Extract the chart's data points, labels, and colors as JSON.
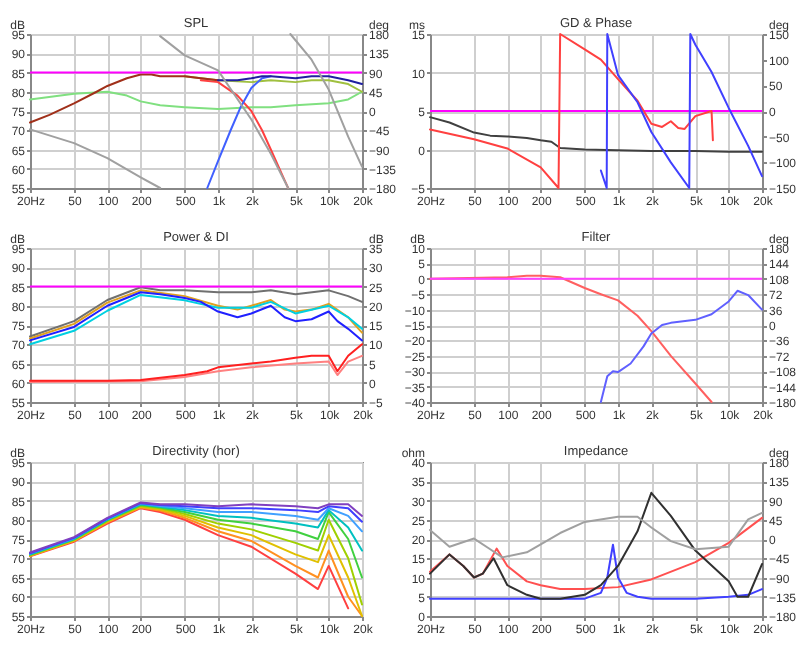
{
  "chart_data": [
    {
      "type": "line",
      "title": "SPL",
      "ylabel": "dB",
      "y2label": "deg",
      "log": "x",
      "grid": true,
      "xlim": [
        20,
        20000
      ],
      "xticks": [
        {
          "value": 20,
          "label": "20Hz"
        },
        50,
        100,
        200,
        500,
        {
          "value": 1000,
          "label": "1k"
        },
        {
          "value": 2000,
          "label": "2k"
        },
        {
          "value": 5000,
          "label": "5k"
        },
        {
          "value": 10000,
          "label": "10k"
        },
        {
          "value": 20000,
          "label": "20k"
        }
      ],
      "ylim": [
        55,
        95
      ],
      "yticks": [
        55,
        60,
        65,
        70,
        75,
        80,
        85,
        90,
        95
      ],
      "y2lim": [
        -180,
        180
      ],
      "y2ticks": [
        -180,
        -135,
        -90,
        -45,
        0,
        45,
        90,
        135,
        180
      ],
      "ref_lines": [
        {
          "axis": "y",
          "value": 85,
          "color": "#ff00ff"
        }
      ],
      "series": [
        {
          "color": "#80e080",
          "x": [
            20,
            50,
            100,
            150,
            200,
            300,
            500,
            1000,
            2000,
            3000,
            5000,
            10000,
            15000,
            20000
          ],
          "values": [
            78,
            79.5,
            80,
            79,
            77.5,
            76.5,
            76,
            75.5,
            76,
            76,
            76.5,
            77,
            78,
            80
          ]
        },
        {
          "color": "#a0c040",
          "x": [
            500,
            700,
            1000,
            2000,
            3000,
            5000,
            7000,
            10000,
            15000,
            20000
          ],
          "values": [
            84,
            83.5,
            83,
            82.5,
            83,
            82.5,
            83,
            83,
            82,
            80
          ]
        },
        {
          "color": "#ff4040",
          "x": [
            700,
            1000,
            1500,
            2000,
            2500,
            3000,
            4000,
            4300
          ],
          "values": [
            83,
            82.5,
            79,
            75,
            70,
            65,
            57,
            55
          ]
        },
        {
          "color": "#4060ff",
          "x": [
            800,
            1000,
            1300,
            1600,
            2000,
            2500,
            3000
          ],
          "values": [
            55,
            62,
            70,
            76,
            81,
            83.5,
            84
          ]
        },
        {
          "color": "#a0301a",
          "x": [
            20,
            30,
            50,
            80,
            100,
            150,
            200,
            250,
            300,
            400,
            500,
            700,
            1000
          ],
          "values": [
            72,
            74,
            77,
            80,
            81.5,
            83.5,
            84.5,
            84.5,
            84,
            84,
            84,
            83.5,
            83
          ]
        },
        {
          "color": "#2020a0",
          "x": [
            1000,
            1500,
            2000,
            2500,
            3000,
            5000,
            7000,
            10000,
            15000,
            20000
          ],
          "values": [
            83,
            83,
            83.5,
            84,
            84,
            83.5,
            84,
            84,
            83,
            82
          ]
        },
        {
          "color": "#a0a0a0",
          "axis": "y2",
          "x": [
            20,
            50,
            100,
            200,
            300
          ],
          "values": [
            -43,
            -75,
            -110,
            -155,
            -180
          ]
        },
        {
          "color": "#a0a0a0",
          "axis": "y2",
          "x": [
            300,
            500,
            1000,
            2000,
            3000,
            4300
          ],
          "values": [
            175,
            130,
            95,
            -20,
            -100,
            -180
          ]
        },
        {
          "color": "#a0a0a0",
          "axis": "y2",
          "x": [
            4500,
            7000,
            10000,
            15000,
            20000
          ],
          "values": [
            180,
            120,
            50,
            -60,
            -130
          ]
        }
      ]
    },
    {
      "type": "line",
      "title": "GD & Phase",
      "ylabel": "ms",
      "y2label": "deg",
      "log": "x",
      "grid": true,
      "xlim": [
        20,
        20000
      ],
      "xticks": [
        {
          "value": 20,
          "label": "20Hz"
        },
        50,
        100,
        200,
        500,
        {
          "value": 1000,
          "label": "1k"
        },
        {
          "value": 2000,
          "label": "2k"
        },
        {
          "value": 5000,
          "label": "5k"
        },
        {
          "value": 10000,
          "label": "10k"
        },
        {
          "value": 20000,
          "label": "20k"
        }
      ],
      "ylim": [
        -5,
        15
      ],
      "yticks": [
        -5,
        0,
        5,
        10,
        15
      ],
      "y2lim": [
        -150,
        150
      ],
      "y2ticks": [
        -150,
        -100,
        -50,
        0,
        50,
        100,
        150
      ],
      "ref_lines": [
        {
          "axis": "y",
          "value": 5,
          "color": "#ff00ff"
        }
      ],
      "series": [
        {
          "color": "#404040",
          "x": [
            20,
            30,
            50,
            70,
            100,
            150,
            200,
            250,
            300,
            500,
            1000,
            2000,
            5000,
            10000,
            20000
          ],
          "values": [
            4.2,
            3.5,
            2.2,
            1.8,
            1.7,
            1.5,
            1.2,
            1,
            0.2,
            0,
            -0.1,
            -0.2,
            -0.2,
            -0.3,
            -0.3
          ]
        },
        {
          "color": "#ff4040",
          "axis": "y2",
          "x": [
            20,
            50,
            100,
            200,
            290,
            300,
            500,
            700,
            1000,
            1500,
            2000,
            2500,
            3000,
            3500,
            4000,
            5000,
            7000,
            7200
          ],
          "values": [
            -36,
            -55,
            -73,
            -110,
            -150,
            150,
            120,
            100,
            62,
            20,
            -25,
            -31,
            -20,
            -33,
            -35,
            -10,
            0,
            -57
          ]
        },
        {
          "color": "#4040ff",
          "axis": "y2",
          "x": [
            700,
            790,
            800,
            1000,
            1500,
            2000,
            3000,
            4400,
            4500,
            5000,
            7000,
            10000,
            15000,
            20000
          ],
          "values": [
            -116,
            -150,
            150,
            70,
            17,
            -41,
            -100,
            -150,
            150,
            129,
            76,
            6,
            -68,
            -127
          ]
        }
      ]
    },
    {
      "type": "line",
      "title": "Power & DI",
      "ylabel": "dB",
      "y2label": "dB",
      "log": "x",
      "grid": true,
      "xlim": [
        20,
        20000
      ],
      "xticks": [
        {
          "value": 20,
          "label": "20Hz"
        },
        50,
        100,
        200,
        500,
        {
          "value": 1000,
          "label": "1k"
        },
        {
          "value": 2000,
          "label": "2k"
        },
        {
          "value": 5000,
          "label": "5k"
        },
        {
          "value": 10000,
          "label": "10k"
        },
        {
          "value": 20000,
          "label": "20k"
        }
      ],
      "ylim": [
        55,
        95
      ],
      "yticks": [
        55,
        60,
        65,
        70,
        75,
        80,
        85,
        90,
        95
      ],
      "y2lim": [
        -5,
        35
      ],
      "y2ticks": [
        -5,
        0,
        5,
        10,
        15,
        20,
        25,
        30,
        35
      ],
      "ref_lines": [
        {
          "axis": "y",
          "value": 85,
          "color": "#ff00ff"
        }
      ],
      "series": [
        {
          "color": "#707070",
          "x": [
            20,
            50,
            100,
            200,
            300,
            500,
            1000,
            2000,
            3000,
            5000,
            10000,
            15000,
            20000
          ],
          "values": [
            72,
            76,
            81.5,
            84.8,
            84,
            84,
            83.5,
            83.5,
            84,
            83,
            84,
            82.5,
            81
          ]
        },
        {
          "color": "#e0a020",
          "x": [
            20,
            50,
            100,
            200,
            500,
            1000,
            1500,
            2000,
            3000,
            4000,
            5000,
            7000,
            10000,
            15000,
            20000
          ],
          "values": [
            71.5,
            75.3,
            80.8,
            84,
            82.5,
            80,
            79,
            80,
            81.5,
            79,
            78.5,
            79,
            80.5,
            77,
            73
          ]
        },
        {
          "color": "#00d0e0",
          "x": [
            20,
            50,
            100,
            200,
            500,
            1000,
            2000,
            3000,
            5000,
            10000,
            15000,
            20000
          ],
          "values": [
            70,
            73.5,
            78.7,
            82.8,
            81.4,
            79.5,
            79.5,
            81,
            78,
            80,
            77,
            74
          ]
        },
        {
          "color": "#2020ff",
          "x": [
            20,
            50,
            100,
            200,
            300,
            500,
            700,
            1000,
            1500,
            2000,
            3000,
            4000,
            5000,
            7000,
            10000,
            12000,
            15000,
            20000
          ],
          "values": [
            71,
            74.5,
            80,
            83.5,
            83,
            82,
            81,
            78.5,
            77,
            78,
            80,
            77,
            76,
            76.5,
            78.5,
            76,
            74,
            71
          ]
        },
        {
          "color": "#ff8080",
          "axis": "y2",
          "x": [
            20,
            200,
            500,
            1000,
            2000,
            5000,
            10000,
            12000,
            15000,
            20000
          ],
          "values": [
            0.2,
            0.4,
            1.5,
            3,
            4,
            5,
            5.5,
            2,
            5.5,
            7
          ]
        },
        {
          "color": "#ff2020",
          "axis": "y2",
          "x": [
            20,
            100,
            200,
            500,
            800,
            1000,
            2000,
            3000,
            5000,
            7000,
            10000,
            12000,
            15000,
            20000
          ],
          "values": [
            0.5,
            0.5,
            0.7,
            2,
            3,
            4,
            5,
            5.5,
            6.5,
            7,
            7,
            3,
            7,
            10
          ]
        }
      ]
    },
    {
      "type": "line",
      "title": "Filter",
      "ylabel": "dB",
      "y2label": "deg",
      "log": "x",
      "grid": true,
      "xlim": [
        20,
        20000
      ],
      "xticks": [
        {
          "value": 20,
          "label": "20Hz"
        },
        50,
        100,
        200,
        500,
        {
          "value": 1000,
          "label": "1k"
        },
        {
          "value": 2000,
          "label": "2k"
        },
        {
          "value": 5000,
          "label": "5k"
        },
        {
          "value": 10000,
          "label": "10k"
        },
        {
          "value": 20000,
          "label": "20k"
        }
      ],
      "ylim": [
        -40,
        10
      ],
      "yticks": [
        -40,
        -35,
        -30,
        -25,
        -20,
        -15,
        -10,
        -5,
        0,
        5,
        10
      ],
      "y2lim": [
        -180,
        180
      ],
      "y2ticks": [
        -180,
        -144,
        -108,
        -72,
        -36,
        0,
        36,
        72,
        108,
        144,
        180
      ],
      "ref_lines": [
        {
          "axis": "y",
          "value": 0,
          "color": "#ff40ff"
        }
      ],
      "series": [
        {
          "color": "#ff6060",
          "x": [
            20,
            100,
            150,
            200,
            300,
            500,
            700,
            1000,
            1500,
            2000,
            3000,
            5000,
            7000
          ],
          "values": [
            0,
            0.5,
            1,
            1,
            0.5,
            -3,
            -5,
            -7,
            -12,
            -17,
            -25,
            -34,
            -40
          ]
        },
        {
          "color": "#6060ff",
          "axis": "y2",
          "x": [
            700,
            800,
            900,
            1000,
            1300,
            1700,
            2000,
            2500,
            3000,
            5000,
            7000,
            10000,
            12000,
            15000,
            20000
          ],
          "values": [
            -180,
            -120,
            -108,
            -110,
            -90,
            -50,
            -20,
            0,
            5,
            12,
            25,
            55,
            80,
            70,
            36
          ]
        }
      ]
    },
    {
      "type": "line",
      "title": "Directivity (hor)",
      "ylabel": "dB",
      "log": "x",
      "grid": true,
      "xlim": [
        20,
        20000
      ],
      "xticks": [
        {
          "value": 20,
          "label": "20Hz"
        },
        50,
        100,
        200,
        500,
        {
          "value": 1000,
          "label": "1k"
        },
        {
          "value": 2000,
          "label": "2k"
        },
        {
          "value": 5000,
          "label": "5k"
        },
        {
          "value": 10000,
          "label": "10k"
        },
        {
          "value": 20000,
          "label": "20k"
        }
      ],
      "ylim": [
        55,
        95
      ],
      "yticks": [
        55,
        60,
        65,
        70,
        75,
        80,
        85,
        90,
        95
      ],
      "x": [
        20,
        50,
        100,
        200,
        300,
        500,
        1000,
        2000,
        5000,
        8000,
        10000,
        15000,
        20000
      ],
      "series": [
        {
          "color": "#ff4040",
          "values": [
            70.5,
            74.3,
            79,
            83,
            82,
            80,
            76,
            73,
            66,
            62,
            68,
            57,
            null
          ]
        },
        {
          "color": "#ff9020",
          "values": [
            70.6,
            74.5,
            79.3,
            83.2,
            82.4,
            80.5,
            77,
            74.5,
            68,
            65,
            72,
            60,
            55
          ]
        },
        {
          "color": "#e0c000",
          "values": [
            70.7,
            74.6,
            79.5,
            83.4,
            82.7,
            81,
            78,
            76,
            71,
            69,
            76,
            65,
            55
          ]
        },
        {
          "color": "#a0d000",
          "values": [
            70.8,
            74.8,
            79.7,
            83.6,
            83,
            81.5,
            79,
            77.5,
            74,
            72,
            80,
            70,
            58
          ]
        },
        {
          "color": "#40d040",
          "values": [
            70.9,
            74.9,
            79.9,
            83.8,
            83.2,
            82,
            80,
            79,
            77,
            75,
            82,
            75,
            65
          ]
        },
        {
          "color": "#00c0c0",
          "values": [
            71,
            75,
            80,
            84,
            83.4,
            82.5,
            81,
            80.5,
            79,
            78,
            82.5,
            78,
            72
          ]
        },
        {
          "color": "#40a0ff",
          "values": [
            71.2,
            75.2,
            80.2,
            84.2,
            83.6,
            83,
            82,
            82,
            81,
            80,
            83,
            81,
            77
          ]
        },
        {
          "color": "#4040ff",
          "values": [
            71.3,
            75.3,
            80.3,
            84.3,
            83.8,
            83.5,
            83,
            83,
            82.5,
            82,
            83.5,
            83,
            79.5
          ]
        },
        {
          "color": "#8040c0",
          "values": [
            71.5,
            75.5,
            80.5,
            84.5,
            84,
            84,
            83.5,
            84,
            83.5,
            83,
            84,
            84,
            81
          ]
        }
      ]
    },
    {
      "type": "line",
      "title": "Impedance",
      "ylabel": "ohm",
      "y2label": "deg",
      "log": "x",
      "grid": true,
      "xlim": [
        20,
        20000
      ],
      "xticks": [
        {
          "value": 20,
          "label": "20Hz"
        },
        50,
        100,
        200,
        500,
        {
          "value": 1000,
          "label": "1k"
        },
        {
          "value": 2000,
          "label": "2k"
        },
        {
          "value": 5000,
          "label": "5k"
        },
        {
          "value": 10000,
          "label": "10k"
        },
        {
          "value": 20000,
          "label": "20k"
        }
      ],
      "ylim": [
        0,
        40
      ],
      "yticks": [
        0,
        5,
        10,
        15,
        20,
        25,
        30,
        35,
        40
      ],
      "y2lim": [
        -180,
        180
      ],
      "y2ticks": [
        -180,
        -135,
        -90,
        -45,
        0,
        45,
        90,
        135,
        180
      ],
      "series": [
        {
          "color": "#ff5050",
          "x": [
            20,
            30,
            40,
            50,
            60,
            80,
            100,
            150,
            200,
            300,
            500,
            1000,
            2000,
            5000,
            10000,
            20000
          ],
          "values": [
            11.5,
            16,
            13,
            10,
            11,
            17.5,
            13,
            9,
            8,
            7,
            7,
            7.5,
            9.5,
            14,
            19,
            25.5
          ]
        },
        {
          "color": "#4040ff",
          "x": [
            20,
            500,
            700,
            800,
            900,
            1000,
            1200,
            1500,
            2000,
            5000,
            10000,
            15000,
            20000
          ],
          "values": [
            4.5,
            4.5,
            6,
            10,
            18.5,
            10,
            6,
            5,
            4.5,
            4.5,
            5,
            5.5,
            7
          ]
        },
        {
          "color": "#303030",
          "x": [
            20,
            30,
            40,
            50,
            60,
            75,
            100,
            150,
            200,
            300,
            500,
            700,
            1000,
            1500,
            2000,
            3000,
            5000,
            10000,
            12000,
            15000,
            20000
          ],
          "values": [
            11,
            16,
            13,
            10,
            11,
            15,
            8,
            5.5,
            4.5,
            4.5,
            5.5,
            8,
            13,
            22,
            32,
            26,
            17,
            9,
            5,
            5,
            13.5
          ]
        },
        {
          "color": "#a0a0a0",
          "axis": "y2",
          "x": [
            20,
            30,
            50,
            70,
            90,
            150,
            300,
            500,
            1000,
            1500,
            2000,
            3000,
            5000,
            10000,
            15000,
            20000
          ],
          "values": [
            21,
            -18,
            1,
            -24,
            -43,
            -31,
            14,
            40,
            52,
            52,
            27,
            -5,
            -24,
            -18,
            46,
            61
          ]
        }
      ]
    }
  ]
}
